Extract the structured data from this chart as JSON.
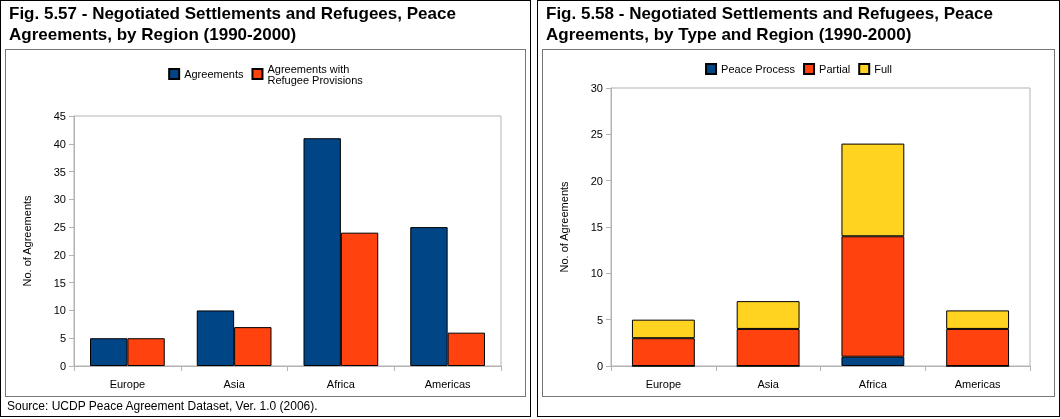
{
  "chart_data": [
    {
      "type": "bar",
      "title": "Fig. 5.57 - Negotiated Settlements and Refugees, Peace Agreements, by Region (1990-2000)",
      "ylabel": "No. of Agreements",
      "categories": [
        "Europe",
        "Asia",
        "Africa",
        "Americas"
      ],
      "series": [
        {
          "name": "Agreements",
          "color": "#004586",
          "values": [
            5,
            10,
            41,
            25
          ]
        },
        {
          "name": "Agreements with Refugee Provisions",
          "color": "#ff420e",
          "values": [
            5,
            7,
            24,
            6
          ]
        }
      ],
      "ylim": [
        0,
        45
      ],
      "yticks": [
        0,
        5,
        10,
        15,
        20,
        25,
        30,
        35,
        40,
        45
      ],
      "grid": false,
      "legend": "top",
      "annotations": [
        "Source: UCDP Peace Agreement Dataset, Ver. 1.0 (2006)."
      ]
    },
    {
      "type": "bar",
      "title": "Fig. 5.58 - Negotiated Settlements and Refugees, Peace Agreements, by Type and Region (1990-2000)",
      "ylabel": "No. of Agreements",
      "categories": [
        "Europe",
        "Asia",
        "Africa",
        "Americas"
      ],
      "stacked": true,
      "series": [
        {
          "name": "Peace Process",
          "color": "#004586",
          "values": [
            0,
            0,
            1,
            0
          ]
        },
        {
          "name": "Partial",
          "color": "#ff420e",
          "values": [
            3,
            4,
            13,
            4
          ]
        },
        {
          "name": "Full",
          "color": "#ffd320",
          "values": [
            2,
            3,
            10,
            2
          ]
        }
      ],
      "ylim": [
        0,
        30
      ],
      "yticks": [
        0,
        5,
        10,
        15,
        20,
        25,
        30
      ],
      "grid": false,
      "legend": "top"
    }
  ]
}
